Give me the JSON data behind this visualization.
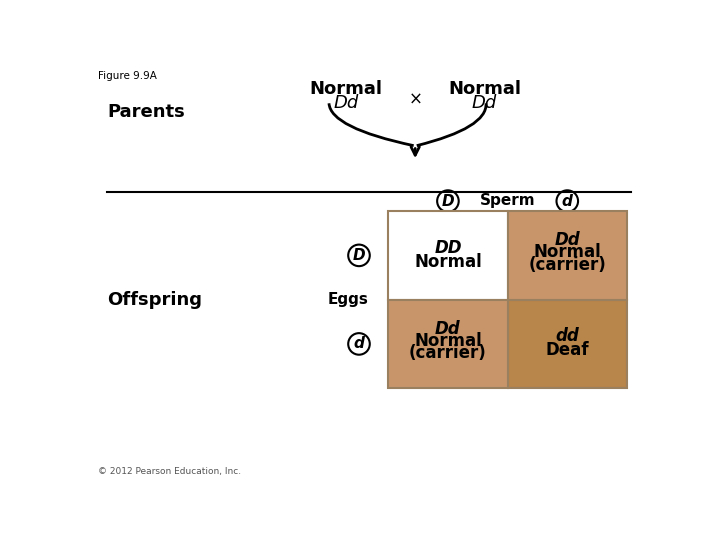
{
  "title": "Figure 9.9A",
  "parent_label": "Parents",
  "offspring_label": "Offspring",
  "parent1_line1": "Normal",
  "parent1_line2": "Dd",
  "parent2_line1": "Normal",
  "parent2_line2": "Dd",
  "cross_symbol": "×",
  "sperm_label": "Sperm",
  "eggs_label": "Eggs",
  "sperm_alleles": [
    "D",
    "d"
  ],
  "egg_alleles": [
    "D",
    "d"
  ],
  "cells": [
    {
      "row": 0,
      "col": 0,
      "line1": "DD",
      "line2": "Normal",
      "line3": "",
      "color": "#ffffff"
    },
    {
      "row": 0,
      "col": 1,
      "line1": "Dd",
      "line2": "Normal",
      "line3": "(carrier)",
      "color": "#c8956b"
    },
    {
      "row": 1,
      "col": 0,
      "line1": "Dd",
      "line2": "Normal",
      "line3": "(carrier)",
      "color": "#c8956b"
    },
    {
      "row": 1,
      "col": 1,
      "line1": "dd",
      "line2": "Deaf",
      "line3": "",
      "color": "#b8854a"
    }
  ],
  "copyright": "© 2012 Pearson Education, Inc.",
  "bg_color": "#ffffff",
  "text_color": "#000000",
  "grid_color": "#9b8060",
  "circle_color": "#000000"
}
